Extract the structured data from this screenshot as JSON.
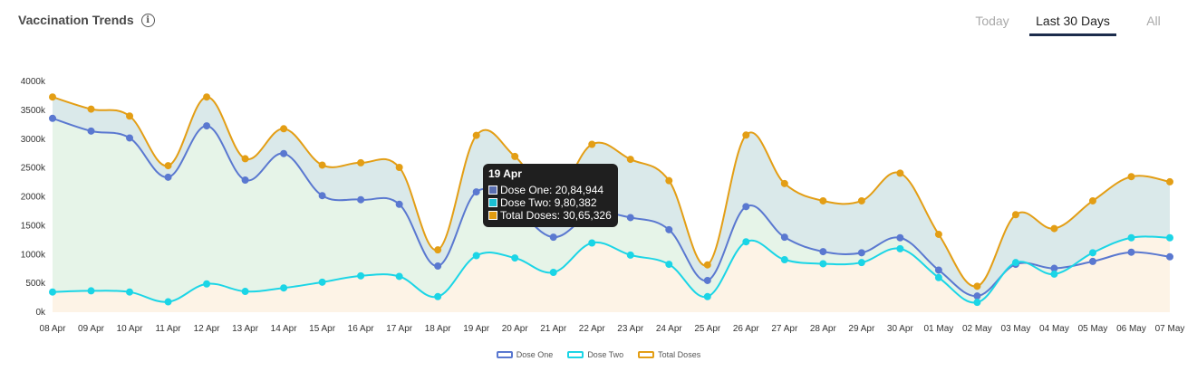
{
  "header": {
    "title": "Vaccination Trends",
    "info_icon": "info-icon"
  },
  "tabs": [
    {
      "label": "Today",
      "active": false
    },
    {
      "label": "Last 30 Days",
      "active": true
    },
    {
      "label": "All",
      "active": false
    }
  ],
  "tooltip": {
    "title": "19 Apr",
    "rows": [
      {
        "label": "Dose One: 20,84,944",
        "color": "#5a6fb0"
      },
      {
        "label": "Dose Two: 9,80,382",
        "color": "#1bbfd3"
      },
      {
        "label": "Total Doses: 30,65,326",
        "color": "#e09b10"
      }
    ]
  },
  "chart_data": {
    "type": "area",
    "categories": [
      "08 Apr",
      "09 Apr",
      "10 Apr",
      "11 Apr",
      "12 Apr",
      "13 Apr",
      "14 Apr",
      "15 Apr",
      "16 Apr",
      "17 Apr",
      "18 Apr",
      "19 Apr",
      "20 Apr",
      "21 Apr",
      "22 Apr",
      "23 Apr",
      "24 Apr",
      "25 Apr",
      "26 Apr",
      "27 Apr",
      "28 Apr",
      "29 Apr",
      "30 Apr",
      "01 May",
      "02 May",
      "03 May",
      "04 May",
      "05 May",
      "06 May",
      "07 May"
    ],
    "y_ticks": [
      "0k",
      "500k",
      "1000k",
      "1500k",
      "2000k",
      "2500k",
      "3000k",
      "3500k",
      "4000k"
    ],
    "ylim": [
      0,
      4000000
    ],
    "series": [
      {
        "name": "Dose One",
        "color": "#5a78d0",
        "fill": "#e6f4e8",
        "values": [
          3360000,
          3140000,
          3020000,
          2340000,
          3230000,
          2290000,
          2750000,
          2020000,
          1950000,
          1870000,
          800000,
          2084944,
          1800000,
          1300000,
          1700000,
          1640000,
          1430000,
          550000,
          1830000,
          1300000,
          1050000,
          1030000,
          1290000,
          730000,
          280000,
          830000,
          760000,
          880000,
          1040000,
          960000
        ]
      },
      {
        "name": "Dose Two",
        "color": "#1bd5e6",
        "fill": "#fdf3e6",
        "values": [
          350000,
          370000,
          350000,
          180000,
          490000,
          360000,
          420000,
          520000,
          630000,
          620000,
          270000,
          980382,
          940000,
          690000,
          1200000,
          990000,
          830000,
          270000,
          1220000,
          910000,
          840000,
          860000,
          1100000,
          600000,
          170000,
          860000,
          660000,
          1030000,
          1290000,
          1290000
        ]
      },
      {
        "name": "Total Doses",
        "color": "#e39e15",
        "fill": "#dae9ea",
        "values": [
          3730000,
          3520000,
          3400000,
          2540000,
          3730000,
          2660000,
          3180000,
          2550000,
          2590000,
          2510000,
          1080000,
          3065326,
          2700000,
          1990000,
          2910000,
          2650000,
          2280000,
          820000,
          3070000,
          2230000,
          1930000,
          1930000,
          2410000,
          1350000,
          450000,
          1690000,
          1450000,
          1930000,
          2350000,
          2260000
        ]
      }
    ],
    "legend_position": "bottom",
    "grid": false
  }
}
